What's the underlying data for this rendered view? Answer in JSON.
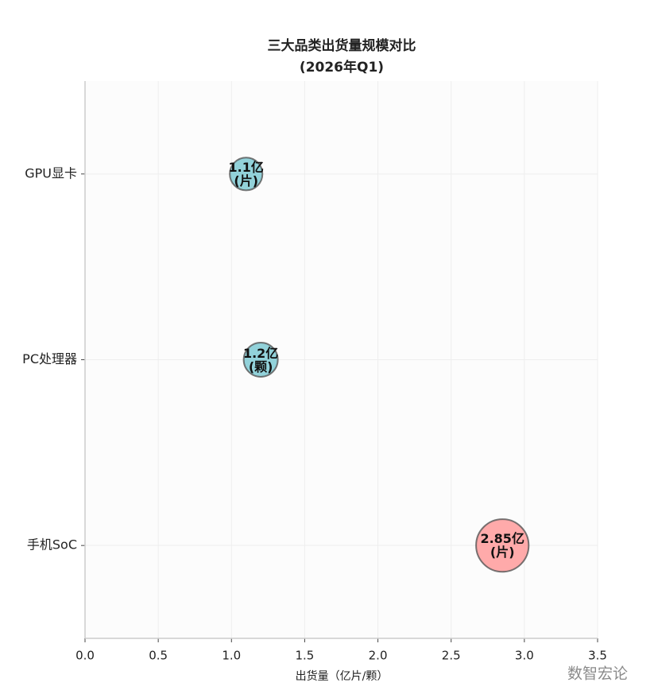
{
  "chart_data": {
    "type": "bubble",
    "title": "三大品类出货量规模对比",
    "subtitle": "(2026年Q1)",
    "x_label": "出货量（亿片/颗）",
    "categories": [
      "手机SoC",
      "PC处理器",
      "GPU显卡"
    ],
    "values": [
      2.85,
      1.2,
      1.1
    ],
    "value_labels": [
      "2.85亿\n(片)",
      "1.2亿\n(颗)",
      "1.1亿\n(片)"
    ],
    "colors": [
      "#ff9b9b",
      "#7fcad4",
      "#7fcad4"
    ],
    "xlim": [
      0,
      3.5
    ],
    "xticks": [
      {
        "value": 0,
        "label": "0.0"
      },
      {
        "value": 0.5,
        "label": "0.5"
      },
      {
        "value": 1,
        "label": "1.0"
      },
      {
        "value": 1.5,
        "label": "1.5"
      },
      {
        "value": 2,
        "label": "2.0"
      },
      {
        "value": 2.5,
        "label": "2.5"
      },
      {
        "value": 3,
        "label": "3.0"
      },
      {
        "value": 3.5,
        "label": "3.5"
      }
    ],
    "grid": true,
    "watermark": "数智宏论"
  }
}
